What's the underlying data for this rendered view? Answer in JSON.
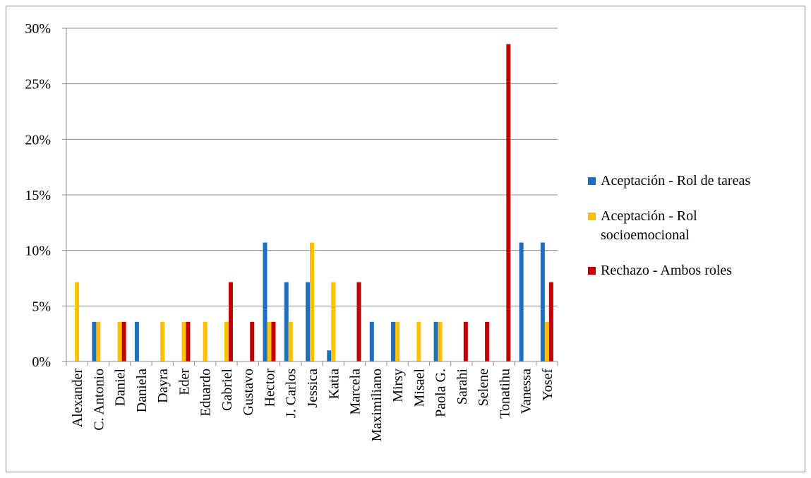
{
  "chart_data": {
    "type": "bar",
    "categories": [
      "Alexander",
      "C. Antonio",
      "Daniel",
      "Daniela",
      "Dayra",
      "Eder",
      "Eduardo",
      "Gabriel",
      "Gustavo",
      "Hector",
      "J. Carlos",
      "Jessica",
      "Katia",
      "Marcela",
      "Maximiliano",
      "Mirsy",
      "Misael",
      "Paola G.",
      "Sarahi",
      "Selene",
      "Tonatihu",
      "Vanessa",
      "Yosef"
    ],
    "series": [
      {
        "name": "Aceptación - Rol de tareas",
        "color": "#1f6fc0",
        "values": [
          0,
          3.57,
          0,
          3.57,
          0,
          0,
          0,
          0,
          0,
          10.71,
          7.14,
          7.14,
          1.0,
          0,
          3.57,
          3.57,
          0,
          3.57,
          0,
          0,
          0,
          10.71,
          10.71
        ]
      },
      {
        "name": "Aceptación - Rol socioemocional",
        "color": "#ffc000",
        "values": [
          7.14,
          3.57,
          3.57,
          0,
          3.57,
          3.57,
          3.57,
          3.57,
          0,
          3.57,
          3.57,
          10.71,
          7.14,
          0,
          0,
          3.57,
          3.57,
          3.57,
          0,
          0,
          0,
          0,
          3.57
        ]
      },
      {
        "name": "Rechazo - Ambos roles",
        "color": "#c00000",
        "values": [
          0,
          0,
          3.57,
          0,
          0,
          3.57,
          0,
          7.14,
          3.57,
          3.57,
          0,
          0,
          0,
          7.14,
          0,
          0,
          0,
          0,
          3.57,
          3.57,
          28.57,
          0,
          7.14
        ]
      }
    ],
    "ylim": [
      0,
      30
    ],
    "yticks": [
      "0%",
      "5%",
      "10%",
      "15%",
      "20%",
      "25%",
      "30%"
    ],
    "grid": true,
    "legend_position": "right"
  },
  "legend": {
    "items": [
      {
        "label": "Aceptación - Rol de tareas",
        "color": "#1f6fc0"
      },
      {
        "label_line1": "Aceptación - Rol",
        "label_line2": "socioemocional",
        "color": "#ffc000"
      },
      {
        "label": "Rechazo - Ambos roles",
        "color": "#c00000"
      }
    ]
  }
}
